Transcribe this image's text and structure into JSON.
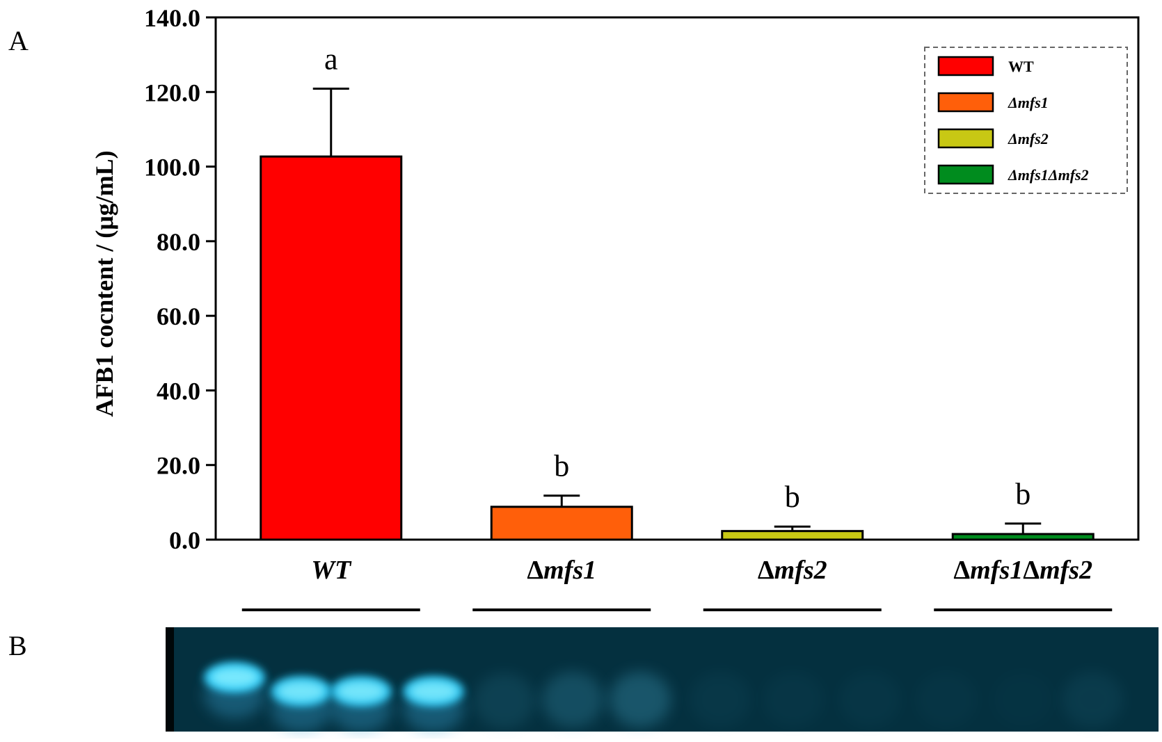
{
  "panels": {
    "a_label": "A",
    "b_label": "B"
  },
  "chart_data": {
    "type": "bar",
    "categories": [
      "WT",
      "Δmfs1",
      "Δmfs2",
      "Δmfs1Δmfs2"
    ],
    "series": [
      {
        "values": [
          102.7,
          8.8,
          2.3,
          1.5
        ],
        "errors": [
          18.2,
          3.0,
          1.2,
          2.8
        ]
      }
    ],
    "significance_letters": [
      "a",
      "b",
      "b",
      "b"
    ],
    "bar_colors": [
      "#ff0000",
      "#ff5f0a",
      "#c8c814",
      "#008c1e"
    ],
    "ylabel": "AFB1 cocntent / (μg/mL)",
    "ylim": [
      0,
      140
    ],
    "yticks": [
      0,
      20,
      40,
      60,
      80,
      100,
      120,
      140
    ],
    "ytick_labels": [
      "0.0",
      "20.0",
      "40.0",
      "60.0",
      "80.0",
      "100.0",
      "120.0",
      "140.0"
    ],
    "legend": {
      "placement": "top-right",
      "entries": [
        {
          "label": "WT",
          "color": "#ff0000"
        },
        {
          "label": "Δmfs1",
          "color": "#ff5f0a"
        },
        {
          "label": "Δmfs2",
          "color": "#c8c814"
        },
        {
          "label": "Δmfs1Δmfs2",
          "color": "#008c1e"
        }
      ]
    },
    "grid": false
  },
  "gel": {
    "background": "#04303f",
    "lanes_per_group": 3,
    "band_intensity": [
      0.95,
      0.9,
      0.9,
      0.9,
      0.12,
      0.22,
      0.28,
      0.05,
      0.04,
      0.04,
      0.03,
      0.02,
      0.08
    ]
  }
}
